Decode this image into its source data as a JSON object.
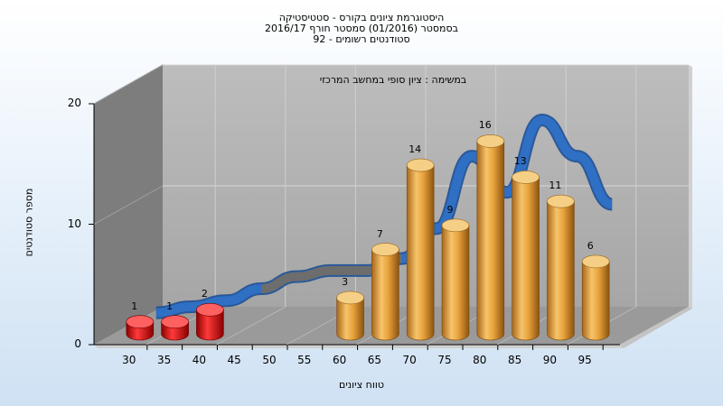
{
  "chart_data": {
    "type": "bar",
    "title_lines": [
      "היסטוגרמת ציונים בקורס - סטטיסטיקה",
      "בסמסטר  (01/2016)  סמסטר חורף 2016/17",
      "סטודנטים רשומים - 92"
    ],
    "annotation": "במשימה : ציון סופי במחשב המרכזי",
    "xlabel": "טווח ציונים",
    "ylabel": "מספר סטודנטים",
    "categories": [
      "30",
      "35",
      "40",
      "45",
      "50",
      "55",
      "60",
      "65",
      "70",
      "75",
      "80",
      "85",
      "90",
      "95"
    ],
    "series": [
      {
        "values": [
          1,
          1,
          2,
          null,
          null,
          null,
          3,
          7,
          14,
          9,
          16,
          13,
          11,
          6
        ],
        "labels": [
          "1",
          "1",
          "2",
          "",
          "",
          "",
          "3",
          "7",
          "14",
          "9",
          "16",
          "13",
          "11",
          "6"
        ]
      }
    ],
    "curve": [
      1,
      1.5,
      2,
      3,
      4,
      4.5,
      4.5,
      5.5,
      8,
      14,
      11,
      17,
      14,
      10
    ],
    "ylim": [
      0,
      20
    ],
    "yticks": [
      "0",
      "10",
      "20"
    ],
    "grid": true,
    "colors": {
      "fail_bar": "#e01818",
      "pass_bar": "#e8a33c",
      "curve": "#2f6fc4",
      "curve_flat": "#6d6d6d",
      "back_wall": "#b0b0b0",
      "side_wall": "#7a7a7a",
      "floor": "#8f8f8f"
    }
  }
}
